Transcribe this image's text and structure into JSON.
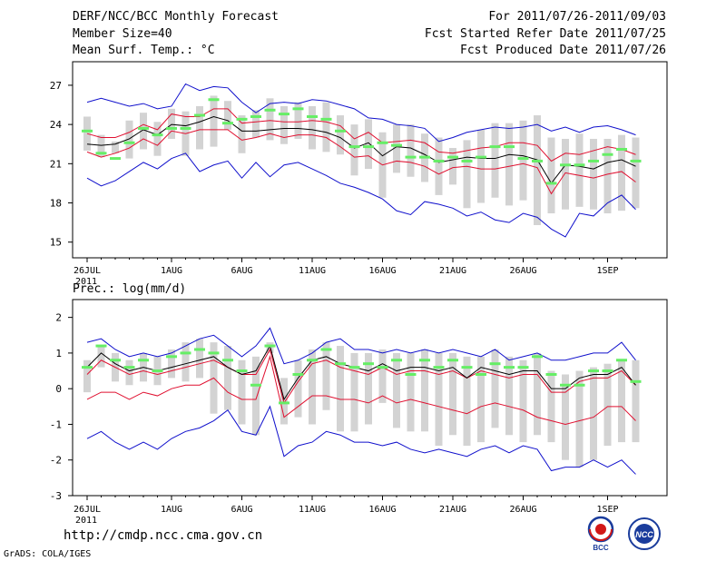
{
  "header": {
    "title": "DERF/NCC/BCC Monthly Forecast",
    "member_size": "Member Size=40",
    "variable": "Mean Surf. Temp.: °C",
    "period": "For 2011/07/26-2011/09/03",
    "fcst_started": "Fcst Started Refer Date 2011/07/25",
    "fcst_produced": "Fcst Produced Date 2011/07/26"
  },
  "footer": {
    "url": "http://cmdp.ncc.cma.gov.cn",
    "credit": "GrADS: COLA/IGES",
    "logo_left": "BCC",
    "logo_right": "NCC"
  },
  "colors": {
    "median": "#000000",
    "quartile": "#e01030",
    "extreme": "#1010cc",
    "observation": "#66ee66",
    "box": "#d3d3d3"
  },
  "chart_data": [
    {
      "type": "line",
      "title": "Mean Surf. Temp.: °C",
      "x_ticks": [
        "26JUL",
        "1AUG",
        "6AUG",
        "11AUG",
        "16AUG",
        "21AUG",
        "26AUG",
        "1SEP"
      ],
      "x_tick_days": [
        0,
        6,
        11,
        16,
        21,
        26,
        31,
        37
      ],
      "x_year": "2011",
      "days": 40,
      "ylim": [
        13.8,
        28.8
      ],
      "y_ticks": [
        15,
        18,
        21,
        24,
        27
      ],
      "series": [
        {
          "name": "max",
          "values": [
            25.7,
            26.0,
            25.7,
            25.4,
            25.6,
            25.2,
            25.4,
            27.1,
            26.6,
            26.9,
            26.8,
            25.7,
            24.9,
            25.6,
            25.7,
            25.6,
            25.9,
            25.8,
            25.5,
            25.2,
            24.5,
            24.4,
            24.0,
            23.9,
            23.7,
            22.7,
            23.0,
            23.4,
            23.6,
            23.8,
            23.7,
            23.8,
            24.0,
            23.5,
            23.8,
            23.4,
            23.8,
            23.9,
            23.6,
            23.2
          ]
        },
        {
          "name": "q75",
          "values": [
            23.3,
            23.0,
            23.0,
            23.4,
            24.0,
            23.6,
            24.8,
            24.6,
            24.6,
            25.2,
            25.2,
            24.1,
            24.2,
            24.3,
            24.2,
            24.2,
            24.3,
            24.2,
            23.9,
            22.9,
            23.4,
            22.6,
            22.7,
            22.8,
            22.6,
            21.9,
            21.8,
            22.0,
            22.2,
            22.3,
            22.6,
            22.6,
            22.4,
            21.2,
            21.8,
            21.7,
            22.0,
            22.3,
            22.1,
            21.7
          ]
        },
        {
          "name": "median",
          "values": [
            22.5,
            22.4,
            22.5,
            22.9,
            23.6,
            23.2,
            24.0,
            23.9,
            24.2,
            24.6,
            24.3,
            23.5,
            23.5,
            23.6,
            23.7,
            23.7,
            23.6,
            23.4,
            23.0,
            22.2,
            22.6,
            21.6,
            22.3,
            22.2,
            21.7,
            21.1,
            21.3,
            21.5,
            21.4,
            21.4,
            21.7,
            21.6,
            21.3,
            19.5,
            20.9,
            20.8,
            20.6,
            21.1,
            21.3,
            20.8
          ]
        },
        {
          "name": "q25",
          "values": [
            21.9,
            21.5,
            21.8,
            22.2,
            22.9,
            22.4,
            23.5,
            23.3,
            23.6,
            23.6,
            23.6,
            22.8,
            23.0,
            23.3,
            23.0,
            23.2,
            23.2,
            23.0,
            22.3,
            21.5,
            21.6,
            20.9,
            21.2,
            21.1,
            20.8,
            20.2,
            20.7,
            20.8,
            20.6,
            20.6,
            20.8,
            21.0,
            20.7,
            18.7,
            20.3,
            20.1,
            19.9,
            20.2,
            20.4,
            19.6
          ]
        },
        {
          "name": "min",
          "values": [
            19.9,
            19.3,
            19.7,
            20.4,
            21.1,
            20.6,
            21.4,
            21.8,
            20.4,
            20.9,
            21.2,
            19.9,
            21.1,
            20.0,
            20.9,
            21.1,
            20.6,
            20.1,
            19.5,
            19.2,
            18.8,
            18.3,
            17.4,
            17.1,
            18.1,
            17.9,
            17.6,
            17.0,
            17.3,
            16.7,
            16.5,
            17.2,
            16.9,
            16.0,
            15.4,
            17.2,
            17.0,
            18.0,
            18.6,
            17.5
          ]
        },
        {
          "name": "observation",
          "values": [
            23.5,
            21.8,
            21.4,
            22.6,
            23.7,
            23.2,
            23.7,
            23.7,
            24.7,
            25.9,
            24.1,
            24.4,
            24.6,
            25.1,
            24.8,
            25.2,
            24.6,
            24.4,
            23.5,
            22.3,
            22.3,
            22.6,
            22.4,
            21.5,
            21.5,
            21.2,
            21.5,
            21.2,
            21.5,
            22.3,
            22.3,
            21.4,
            21.2,
            19.5,
            20.9,
            20.9,
            21.2,
            21.7,
            22.1,
            21.2
          ]
        },
        {
          "name": "box_high",
          "values": [
            24.6,
            23.2,
            22.7,
            24.3,
            24.9,
            24.2,
            25.2,
            25.0,
            25.4,
            26.2,
            25.8,
            24.7,
            25.1,
            26.0,
            25.4,
            25.7,
            25.4,
            25.7,
            24.7,
            24.0,
            24.4,
            23.4,
            24.0,
            24.0,
            23.3,
            23.0,
            22.2,
            22.8,
            23.6,
            24.1,
            24.1,
            24.3,
            24.7,
            23.0,
            22.9,
            23.3,
            22.9,
            22.9,
            23.2,
            23.0
          ]
        },
        {
          "name": "box_low",
          "values": [
            22.0,
            21.5,
            21.8,
            21.4,
            22.1,
            21.6,
            22.9,
            21.6,
            22.1,
            22.3,
            23.6,
            21.8,
            23.0,
            22.8,
            22.5,
            22.9,
            22.1,
            21.9,
            21.7,
            20.1,
            20.6,
            18.4,
            20.3,
            20.0,
            19.6,
            18.6,
            19.4,
            17.6,
            18.0,
            18.4,
            17.8,
            18.2,
            16.3,
            17.2,
            17.5,
            17.7,
            17.5,
            17.2,
            17.4,
            17.6
          ]
        }
      ]
    },
    {
      "type": "line",
      "title": "Prec.: log(mm/d)",
      "x_ticks": [
        "26JUL",
        "1AUG",
        "6AUG",
        "11AUG",
        "16AUG",
        "21AUG",
        "26AUG",
        "1SEP"
      ],
      "x_tick_days": [
        0,
        6,
        11,
        16,
        21,
        26,
        31,
        37
      ],
      "x_year": "2011",
      "days": 40,
      "ylim": [
        -3,
        2.5
      ],
      "y_ticks": [
        -3,
        -2,
        -1,
        0,
        1,
        2
      ],
      "series": [
        {
          "name": "max",
          "values": [
            1.3,
            1.4,
            1.1,
            0.9,
            1.0,
            0.9,
            1.0,
            1.2,
            1.4,
            1.5,
            1.2,
            0.9,
            1.2,
            1.7,
            0.7,
            0.8,
            1.0,
            1.3,
            1.4,
            1.1,
            1.1,
            1.0,
            1.1,
            1.0,
            1.1,
            1.0,
            1.1,
            1.0,
            0.9,
            1.1,
            0.8,
            0.9,
            1.0,
            0.8,
            0.8,
            0.9,
            1.0,
            1.0,
            1.3,
            0.8
          ]
        },
        {
          "name": "median",
          "values": [
            0.6,
            1.0,
            0.7,
            0.5,
            0.6,
            0.5,
            0.6,
            0.7,
            0.8,
            0.9,
            0.6,
            0.4,
            0.5,
            1.2,
            -0.3,
            0.3,
            0.8,
            0.9,
            0.7,
            0.6,
            0.5,
            0.7,
            0.5,
            0.6,
            0.6,
            0.5,
            0.6,
            0.3,
            0.6,
            0.5,
            0.4,
            0.5,
            0.5,
            0.0,
            0.0,
            0.3,
            0.4,
            0.4,
            0.6,
            0.1
          ]
        },
        {
          "name": "q25",
          "values": [
            0.4,
            0.8,
            0.6,
            0.4,
            0.5,
            0.4,
            0.5,
            0.6,
            0.7,
            0.8,
            0.6,
            0.4,
            0.4,
            1.1,
            -0.4,
            0.2,
            0.7,
            0.8,
            0.6,
            0.5,
            0.4,
            0.6,
            0.4,
            0.5,
            0.5,
            0.4,
            0.5,
            0.3,
            0.5,
            0.4,
            0.3,
            0.4,
            0.4,
            -0.1,
            -0.1,
            0.2,
            0.3,
            0.3,
            0.5,
            0.1
          ]
        },
        {
          "name": "q10",
          "values": [
            -0.3,
            -0.1,
            -0.1,
            -0.3,
            -0.1,
            -0.2,
            0.0,
            0.1,
            0.1,
            0.3,
            -0.1,
            -0.3,
            -0.3,
            0.9,
            -0.8,
            -0.5,
            -0.2,
            -0.2,
            -0.3,
            -0.3,
            -0.4,
            -0.2,
            -0.4,
            -0.3,
            -0.4,
            -0.5,
            -0.6,
            -0.7,
            -0.5,
            -0.4,
            -0.5,
            -0.6,
            -0.8,
            -0.9,
            -1.0,
            -0.9,
            -0.8,
            -0.5,
            -0.5,
            -0.9
          ]
        },
        {
          "name": "min",
          "values": [
            -1.4,
            -1.2,
            -1.5,
            -1.7,
            -1.5,
            -1.7,
            -1.4,
            -1.2,
            -1.1,
            -0.9,
            -0.6,
            -1.2,
            -1.3,
            -0.5,
            -1.9,
            -1.6,
            -1.5,
            -1.2,
            -1.3,
            -1.5,
            -1.5,
            -1.6,
            -1.5,
            -1.7,
            -1.8,
            -1.7,
            -1.8,
            -1.9,
            -1.7,
            -1.6,
            -1.8,
            -1.6,
            -1.7,
            -2.3,
            -2.2,
            -2.2,
            -2.0,
            -2.2,
            -2.0,
            -2.4
          ]
        },
        {
          "name": "observation",
          "values": [
            0.6,
            1.2,
            0.8,
            0.6,
            0.8,
            0.5,
            0.9,
            1.0,
            1.1,
            1.0,
            0.8,
            0.5,
            0.1,
            1.2,
            -0.4,
            0.4,
            0.8,
            1.1,
            0.7,
            0.6,
            0.7,
            0.6,
            0.8,
            0.4,
            0.8,
            0.6,
            0.8,
            0.6,
            0.4,
            0.7,
            0.6,
            0.6,
            0.9,
            0.4,
            0.1,
            0.1,
            0.5,
            0.5,
            0.8,
            0.2
          ]
        },
        {
          "name": "box_high",
          "values": [
            0.8,
            1.2,
            1.0,
            0.8,
            1.0,
            0.9,
            1.1,
            1.3,
            1.4,
            1.3,
            1.2,
            0.8,
            0.9,
            1.3,
            0.3,
            0.8,
            1.1,
            1.3,
            1.2,
            1.0,
            1.0,
            1.1,
            1.0,
            1.0,
            1.1,
            1.0,
            1.0,
            0.9,
            0.9,
            1.1,
            0.9,
            0.8,
            1.0,
            0.5,
            0.4,
            0.5,
            0.6,
            0.7,
            0.8,
            0.8
          ]
        },
        {
          "name": "box_low",
          "values": [
            -0.1,
            0.6,
            0.2,
            0.1,
            0.2,
            0.1,
            0.3,
            0.2,
            0.3,
            -0.7,
            -0.6,
            -1.0,
            -1.3,
            1.0,
            -1.0,
            -0.8,
            -1.0,
            -0.6,
            -1.2,
            -1.2,
            -1.0,
            -0.4,
            -1.1,
            -1.2,
            -1.2,
            -1.6,
            -1.3,
            -1.6,
            -1.5,
            -1.1,
            -1.3,
            -1.5,
            -1.3,
            -1.5,
            -2.0,
            -2.2,
            -2.0,
            -1.6,
            -1.5,
            -1.5
          ]
        }
      ]
    }
  ]
}
